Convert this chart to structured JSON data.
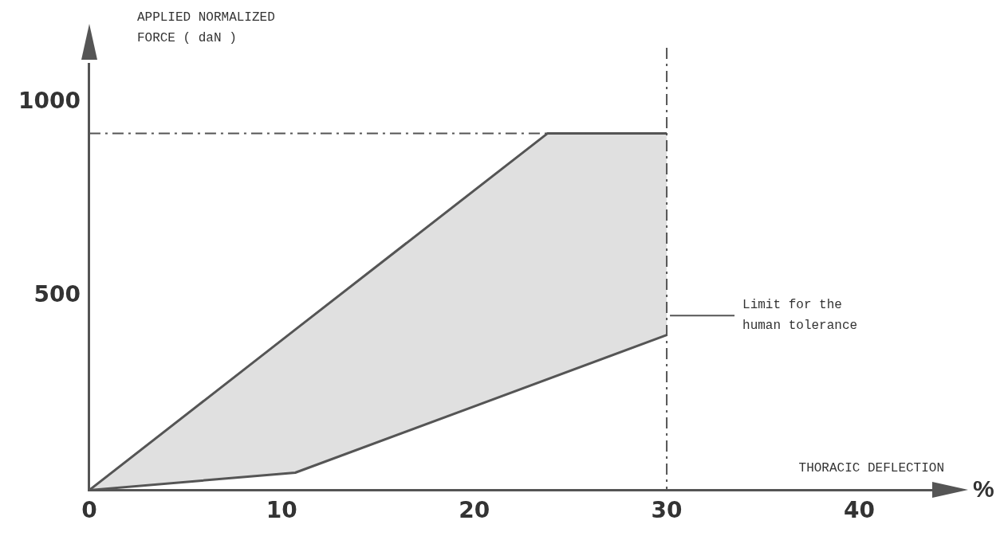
{
  "chart_data": {
    "type": "line",
    "ylabel": "APPLIED NORMALIZED FORCE ( daN )",
    "xlabel": "THORACIC DEFLECTION",
    "series": [
      {
        "color": "#555555",
        "x": [
          0,
          10.7,
          23.8,
          30
        ],
        "values": [
          0,
          414,
          920,
          920
        ],
        "lower": [
          0,
          45,
          286,
          400
        ],
        "upper": [
          0,
          414,
          920,
          920
        ]
      },
      {
        "color": "#555555",
        "x": [
          0,
          10.7,
          30
        ],
        "values": [
          0,
          45,
          400
        ]
      }
    ],
    "xlim": [
      0,
      44
    ],
    "xticks": [
      0,
      10,
      20,
      30,
      40
    ],
    "ylim": [
      0,
      1100
    ],
    "yticks": [
      500,
      1000
    ],
    "ref_lines": [
      {
        "axis": "y",
        "value": 920,
        "line_style": "dashed",
        "color": "#555555"
      },
      {
        "axis": "x",
        "value": 30,
        "line_style": "dashed",
        "color": "#555555"
      }
    ],
    "annotations": [
      {
        "text": "Limit for the human tolerance",
        "x": 30,
        "y": 450
      },
      "%"
    ],
    "grid": false,
    "legend": false,
    "marker": "none",
    "line_style": "solid"
  }
}
